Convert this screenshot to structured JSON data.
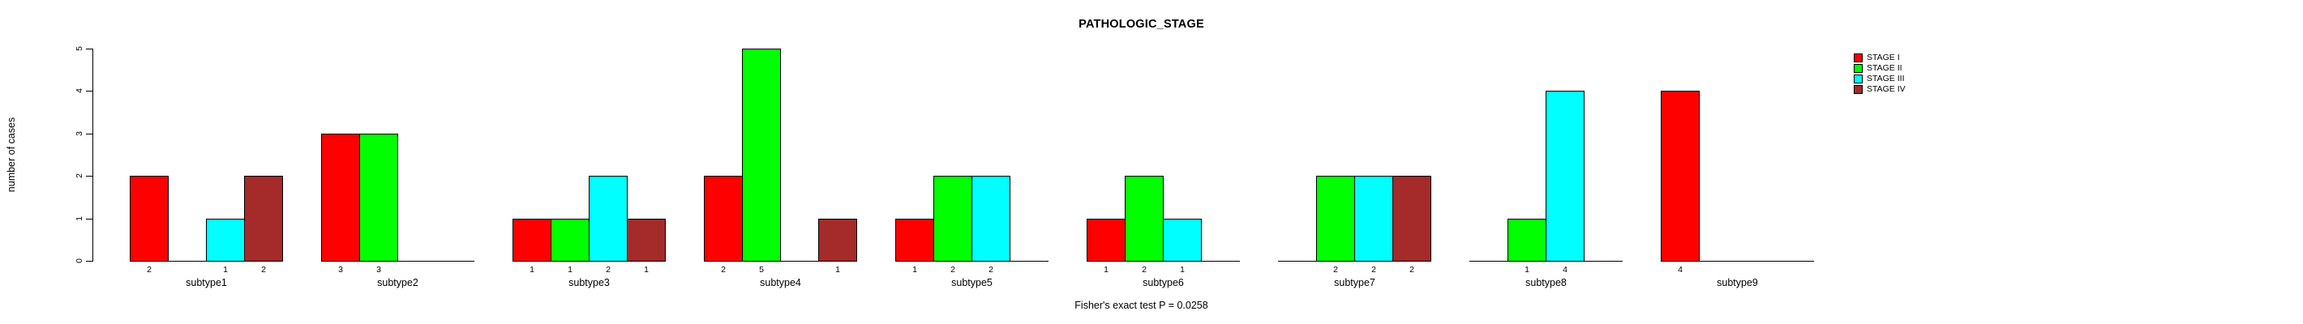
{
  "chart_data": {
    "type": "bar",
    "title": "PATHOLOGIC_STAGE",
    "xlabel": "",
    "ylabel": "number of cases",
    "ylim": [
      0,
      5
    ],
    "yticks": [
      0,
      1,
      2,
      3,
      4,
      5
    ],
    "grid": false,
    "legend_position": "top-right-outside",
    "bar_value_labels": true,
    "hide_zero_bars": true,
    "annotation": "Fisher's exact test P = 0.0258",
    "categories": [
      "subtype1",
      "subtype2",
      "subtype3",
      "subtype4",
      "subtype5",
      "subtype6",
      "subtype7",
      "subtype8",
      "subtype9"
    ],
    "series": [
      {
        "name": "STAGE I",
        "color": "#FF0000",
        "values": [
          2,
          3,
          1,
          2,
          1,
          1,
          0,
          0,
          4
        ]
      },
      {
        "name": "STAGE II",
        "color": "#00FF00",
        "values": [
          0,
          3,
          1,
          5,
          2,
          2,
          2,
          1,
          0
        ]
      },
      {
        "name": "STAGE III",
        "color": "#00FFFF",
        "values": [
          1,
          0,
          2,
          0,
          2,
          1,
          2,
          4,
          0
        ]
      },
      {
        "name": "STAGE IV",
        "color": "#A52A2A",
        "values": [
          2,
          0,
          1,
          1,
          0,
          0,
          2,
          0,
          0
        ]
      }
    ]
  }
}
